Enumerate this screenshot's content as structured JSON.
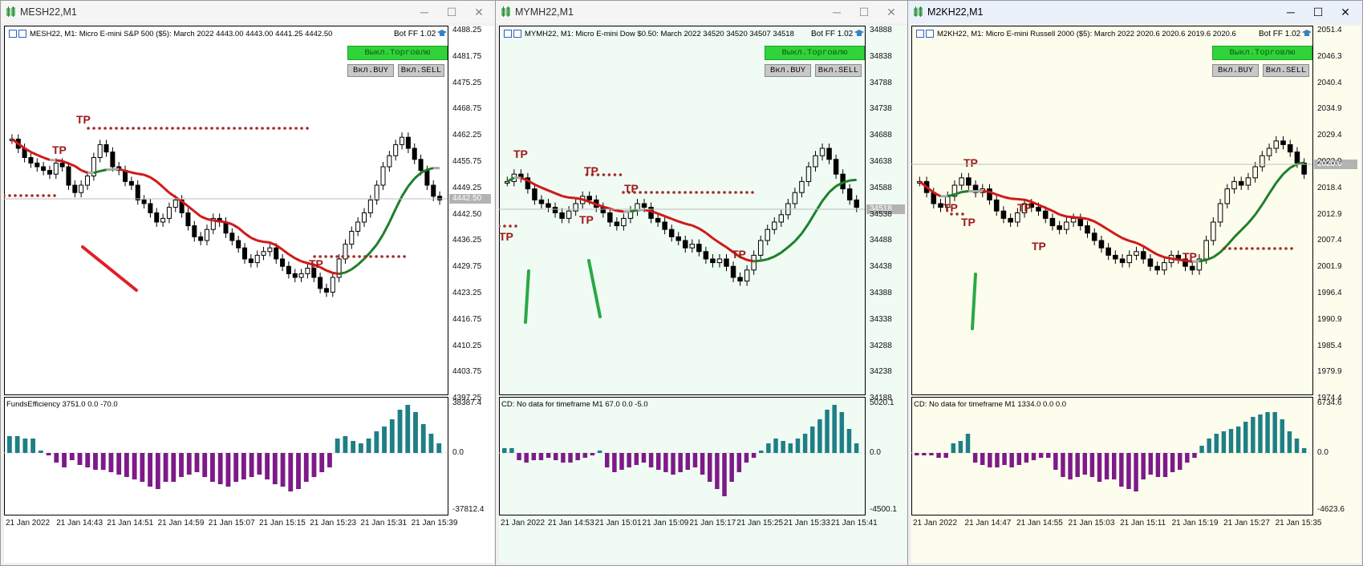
{
  "windows": [
    {
      "title": "MESH22,M1",
      "bg": "#ffffff",
      "header": "MESH22, M1:  Micro E-mini S&P 500 ($5): March 2022   4443.00  4443.00  4441.25  4442.50",
      "bot": "Bot FF 1.02",
      "btn_trade": "Выкл.Торговлю",
      "btn_buy": "Вкл.BUY",
      "btn_sell": "Вкл.SELL",
      "price_ticks": [
        "4488.25",
        "4481.75",
        "4475.25",
        "4468.75",
        "4462.25",
        "4455.75",
        "4449.25",
        "4442.50",
        "4436.25",
        "4429.75",
        "4423.25",
        "4416.75",
        "4410.25",
        "4403.75",
        "4397.25"
      ],
      "current_price": "4442.50",
      "sub_label": "FundsEfficiency 3751.0 0.0 -70.0",
      "sub_ticks": [
        "38387.4",
        "0.0",
        "-37812.4"
      ],
      "time_ticks": [
        "21 Jan 2022",
        "21 Jan 14:43",
        "21 Jan 14:51",
        "21 Jan 14:59",
        "21 Jan 15:07",
        "21 Jan 15:15",
        "21 Jan 15:23",
        "21 Jan 15:31",
        "21 Jan 15:39"
      ],
      "tp": "TP"
    },
    {
      "title": "MYMH22,M1",
      "bg": "#f0fbf4",
      "header": "MYMH22, M1:  Micro E-mini Dow $0.50: March 2022   34520  34520  34507  34518",
      "bot": "Bot FF 1.02",
      "btn_trade": "Выкл.Торговлю",
      "btn_buy": "Вкл.BUY",
      "btn_sell": "Вкл.SELL",
      "price_ticks": [
        "34888",
        "34838",
        "34788",
        "34738",
        "34688",
        "34638",
        "34588",
        "34538",
        "34488",
        "34438",
        "34388",
        "34338",
        "34288",
        "34238",
        "34188"
      ],
      "current_price": "34518",
      "sub_label": "CD: No data for timeframe M1 67.0 0.0 -5.0",
      "sub_ticks": [
        "5020.1",
        "0.0",
        "-4500.1"
      ],
      "time_ticks": [
        "21 Jan 2022",
        "21 Jan 14:53",
        "21 Jan 15:01",
        "21 Jan 15:09",
        "21 Jan 15:17",
        "21 Jan 15:25",
        "21 Jan 15:33",
        "21 Jan 15:41"
      ],
      "tp": "TP"
    },
    {
      "title": "M2KH22,M1",
      "bg": "#fdfdee",
      "header": "M2KH22, M1:  Micro E-mini Russell 2000 ($5): March 2022   2020.6  2020.6  2019.6  2020.6",
      "bot": "Bot FF 1.02",
      "btn_trade": "Выкл.Торговлю",
      "btn_buy": "Вкл.BUY",
      "btn_sell": "Вкл.SELL",
      "price_ticks": [
        "2051.4",
        "2046.3",
        "2040.4",
        "2034.9",
        "2029.4",
        "2023.9",
        "2018.4",
        "2012.9",
        "2007.4",
        "2001.9",
        "1996.4",
        "1990.9",
        "1985.4",
        "1979.9",
        "1974.4"
      ],
      "current_price": "2020.6",
      "sub_label": "CD: No data for timeframe M1 1334.0 0.0 0.0",
      "sub_ticks": [
        "6734.6",
        "0.0",
        "-4623.6"
      ],
      "time_ticks": [
        "21 Jan 2022",
        "21 Jan 14:47",
        "21 Jan 14:55",
        "21 Jan 15:03",
        "21 Jan 15:11",
        "21 Jan 15:19",
        "21 Jan 15:27",
        "21 Jan 15:35"
      ],
      "tp": "TP"
    }
  ],
  "colors": {
    "bull_hist": "#1e7f86",
    "bear_hist": "#7d1a88",
    "ma_red": "#d01818",
    "ma_green": "#1f7f2a",
    "ma_gray": "#a8a8a8",
    "tp_text": "#a01818",
    "dots": "#a52a2a",
    "annot_red": "#e0202a",
    "annot_green": "#2aa845"
  },
  "icons": [
    "chart-window-icon",
    "minimize-icon",
    "maximize-icon",
    "close-icon",
    "hat-icon"
  ]
}
